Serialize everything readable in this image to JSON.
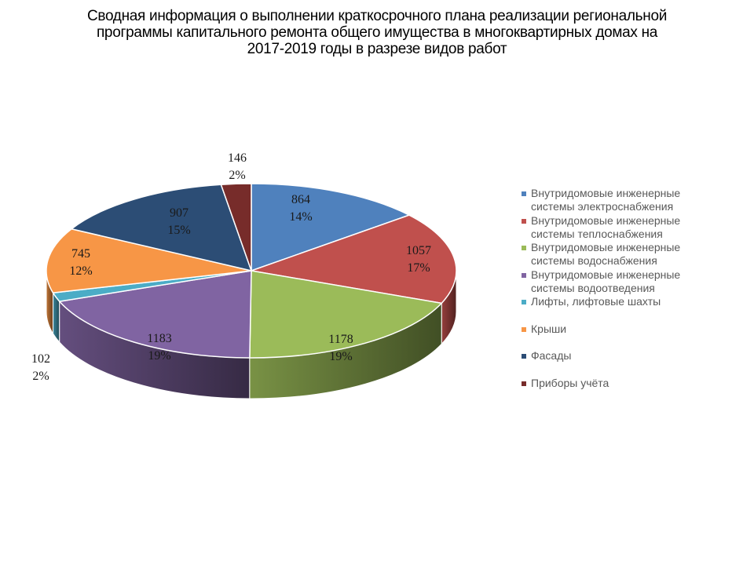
{
  "chart_data": {
    "type": "pie",
    "title_lines": [
      "Сводная информация о выполнении краткосрочного плана  реализации региональной",
      "программы капитального ремонта общего имущества в многоквартирных домах на",
      "2017-2019 годы в разрезе видов работ"
    ],
    "slices": [
      {
        "label": "Внутридомовые инженерные системы электроснабжения",
        "legend_lines": [
          "Внутридомовые инженерные",
          "системы электроснабжения"
        ],
        "value": 864,
        "percent": "14%",
        "color": "#4f81bd"
      },
      {
        "label": "Внутридомовые инженерные системы теплоснабжения",
        "legend_lines": [
          "Внутридомовые инженерные",
          "системы теплоснабжения"
        ],
        "value": 1057,
        "percent": "17%",
        "color": "#c0504d"
      },
      {
        "label": "Внутридомовые инженерные системы водоснабжения",
        "legend_lines": [
          "Внутридомовые инженерные",
          "системы водоснабжения"
        ],
        "value": 1178,
        "percent": "19%",
        "color": "#9bbb59"
      },
      {
        "label": "Внутридомовые инженерные системы водоотведения",
        "legend_lines": [
          "Внутридомовые инженерные",
          "системы водоотведения"
        ],
        "value": 1183,
        "percent": "19%",
        "color": "#8064a2"
      },
      {
        "label": "Лифты, лифтовые шахты",
        "legend_lines": [
          "Лифты, лифтовые шахты"
        ],
        "value": 102,
        "percent": "2%",
        "color": "#4bacc6"
      },
      {
        "label": "Крыши",
        "legend_lines": [
          "Крыши"
        ],
        "value": 745,
        "percent": "12%",
        "color": "#f79646"
      },
      {
        "label": "Фасады",
        "legend_lines": [
          "Фасады"
        ],
        "value": 907,
        "percent": "15%",
        "color": "#2c4d75"
      },
      {
        "label": "Приборы учёта",
        "legend_lines": [
          "Приборы учёта"
        ],
        "value": 146,
        "percent": "2%",
        "color": "#772c2a"
      }
    ],
    "legend_position": "right",
    "style": "3d"
  }
}
